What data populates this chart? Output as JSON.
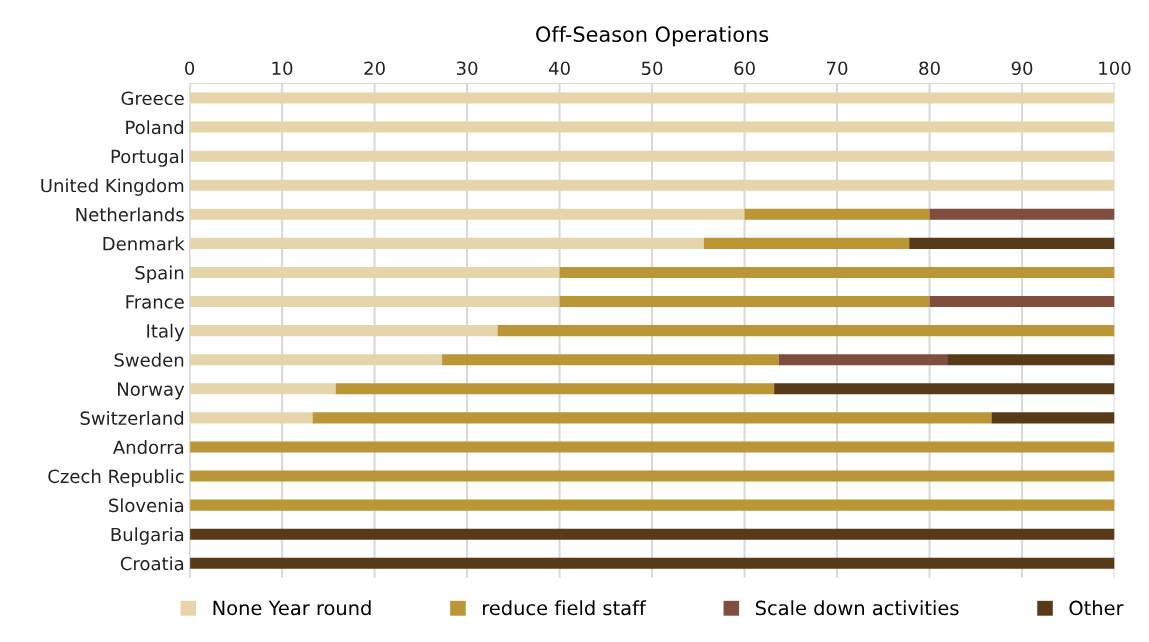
{
  "chart_data": {
    "type": "bar",
    "orientation": "horizontal",
    "stacked": true,
    "title": "Off-Season Operations",
    "categories": [
      "Greece",
      "Poland",
      "Portugal",
      "United Kingdom",
      "Netherlands",
      "Denmark",
      "Spain",
      "France",
      "Italy",
      "Sweden",
      "Norway",
      "Switzerland",
      "Andorra",
      "Czech Republic",
      "Slovenia",
      "Bulgaria",
      "Croatia"
    ],
    "series": [
      {
        "name": "None Year round",
        "color": "#e6d5aa",
        "values": [
          100,
          100,
          100,
          100,
          60,
          55.6,
          40,
          40,
          33.3,
          27.3,
          15.8,
          13.3,
          0,
          0,
          0,
          0,
          0
        ]
      },
      {
        "name": "reduce field staff",
        "color": "#bb9637",
        "values": [
          0,
          0,
          0,
          0,
          20,
          22.2,
          60,
          40,
          66.7,
          36.4,
          47.4,
          73.4,
          100,
          100,
          100,
          0,
          0
        ]
      },
      {
        "name": "Scale down activities",
        "color": "#7f4e3f",
        "values": [
          0,
          0,
          0,
          0,
          20,
          0,
          0,
          20,
          0,
          18.2,
          0,
          0,
          0,
          0,
          0,
          0,
          0
        ]
      },
      {
        "name": "Other",
        "color": "#583a19",
        "values": [
          0,
          0,
          0,
          0,
          0,
          22.2,
          0,
          0,
          0,
          18.2,
          36.8,
          13.3,
          0,
          0,
          0,
          100,
          100
        ]
      }
    ],
    "xlim": [
      0,
      100
    ],
    "xticks": [
      0,
      10,
      20,
      30,
      40,
      50,
      60,
      70,
      80,
      90,
      100
    ],
    "grid": "x",
    "legend": "bottom"
  }
}
